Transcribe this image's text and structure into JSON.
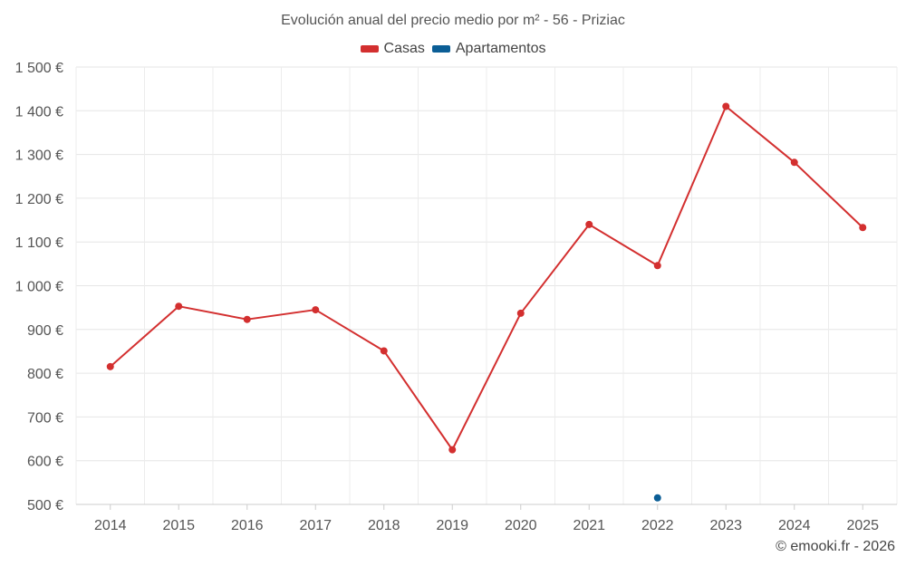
{
  "chart_data": {
    "type": "line",
    "title": "Evolución anual del precio medio por m² - 56 - Priziac",
    "categories": [
      "2014",
      "2015",
      "2016",
      "2017",
      "2018",
      "2019",
      "2020",
      "2021",
      "2022",
      "2023",
      "2024",
      "2025"
    ],
    "series": [
      {
        "name": "Casas",
        "color": "#d32f2f",
        "values": [
          815,
          953,
          923,
          945,
          851,
          625,
          937,
          1140,
          1046,
          1410,
          1282,
          1133
        ]
      },
      {
        "name": "Apartamentos",
        "color": "#0b5e96",
        "values": [
          null,
          null,
          null,
          null,
          null,
          null,
          null,
          null,
          515,
          null,
          null,
          null
        ]
      }
    ],
    "ylim": [
      500,
      1500
    ],
    "yticks": [
      500,
      600,
      700,
      800,
      900,
      1000,
      1100,
      1200,
      1300,
      1400,
      1500
    ],
    "ytick_labels": [
      "500 €",
      "600 €",
      "700 €",
      "800 €",
      "900 €",
      "1 000 €",
      "1 100 €",
      "1 200 €",
      "1 300 €",
      "1 400 €",
      "1 500 €"
    ],
    "xlabel": "",
    "ylabel": "",
    "grid": true,
    "legend": "top-center"
  },
  "credit": "© emooki.fr - 2026"
}
